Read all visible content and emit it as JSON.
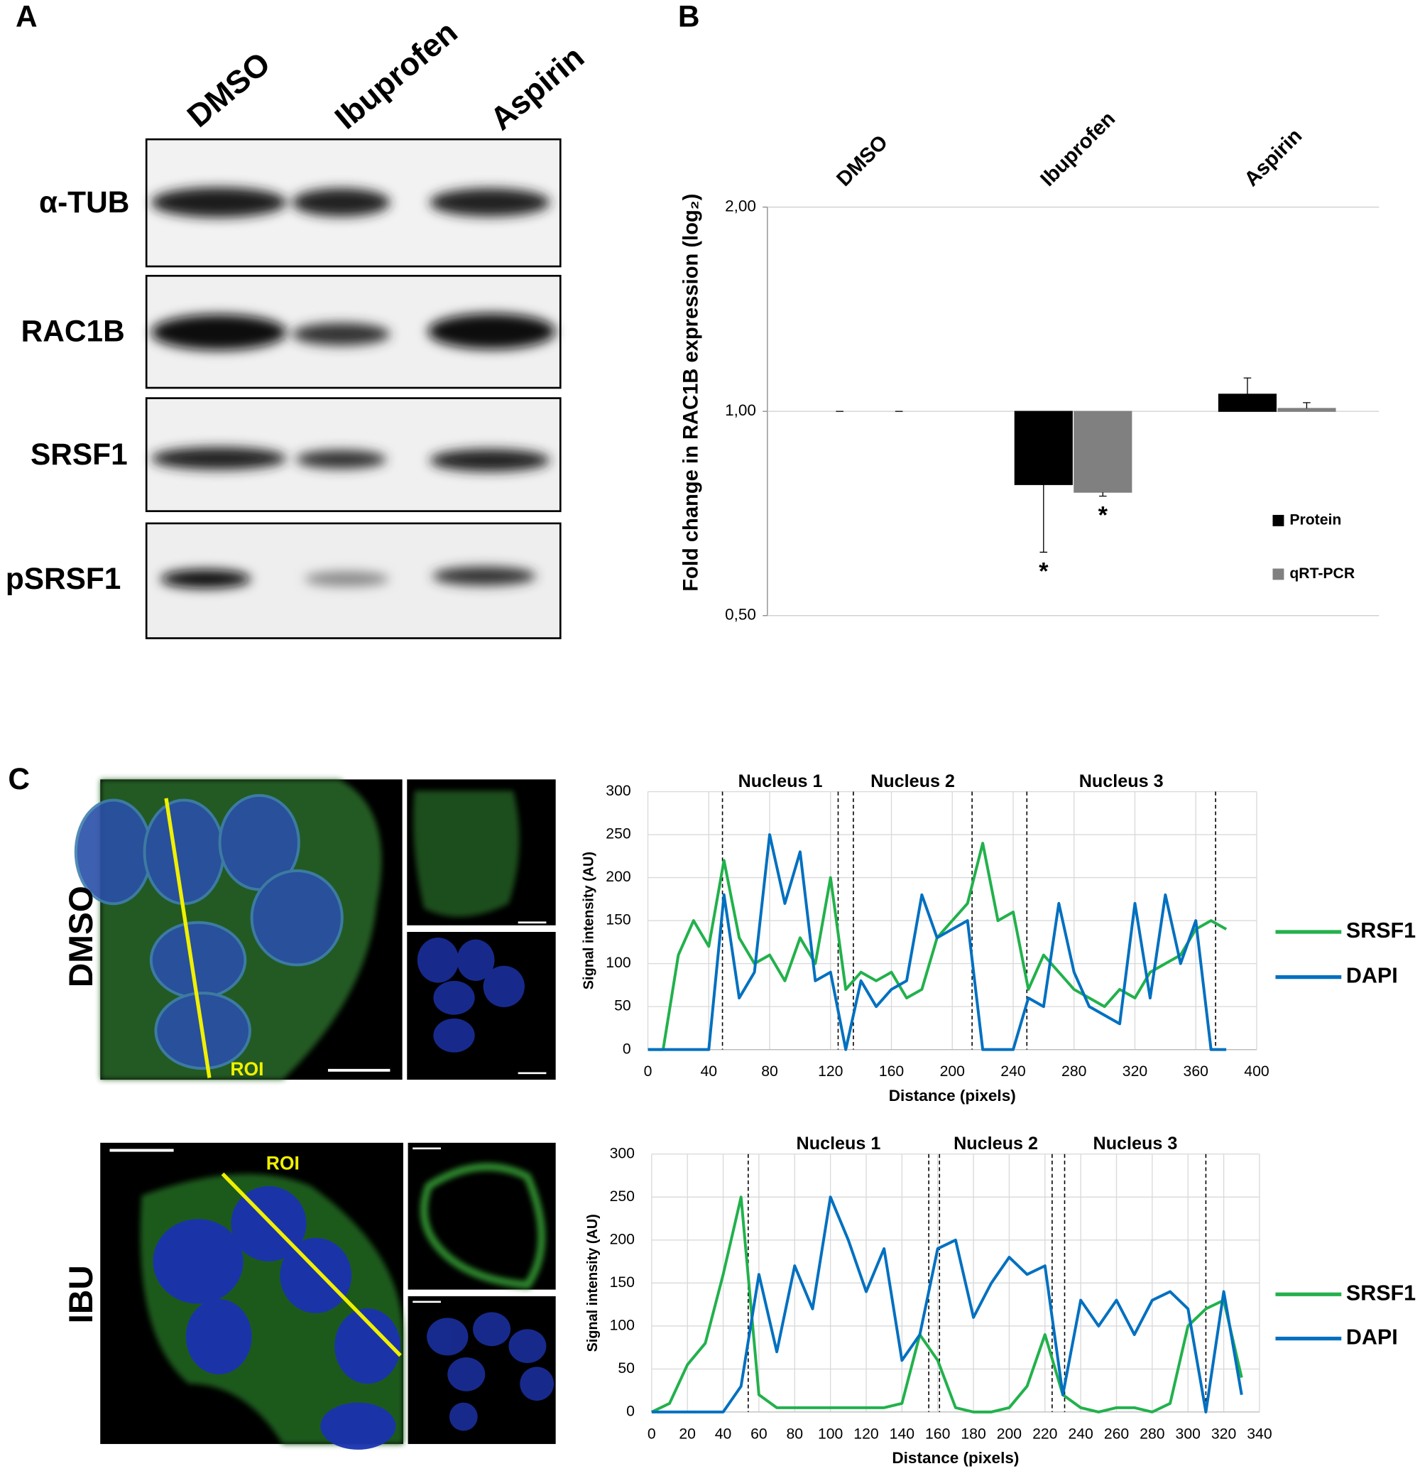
{
  "panel_a": {
    "letter": "A",
    "lanes": [
      "DMSO",
      "Ibuprofen",
      "Aspirin"
    ],
    "blots": [
      "α-TUB",
      "RAC1B",
      "SRSF1",
      "pSRSF1"
    ]
  },
  "panel_b": {
    "letter": "B"
  },
  "panel_c": {
    "letter": "C",
    "conditions": [
      "DMSO",
      "IBU"
    ],
    "roi": [
      "ROI",
      "ROI"
    ]
  },
  "chart_data": [
    {
      "type": "bar",
      "y_label": "Fold change in RAC1B expression (log₂)",
      "categories": [
        "DMSO",
        "Ibuprofen",
        "Aspirin"
      ],
      "series": [
        {
          "name": "Protein",
          "color": "#000000",
          "values": [
            1,
            0.78,
            1.06
          ],
          "errors": [
            0,
            0.16,
            0.06
          ]
        },
        {
          "name": "qRT-PCR",
          "color": "#808080",
          "values": [
            1,
            0.76,
            1.01
          ],
          "errors": [
            0,
            0.01,
            0.02
          ]
        }
      ],
      "log_scale": true,
      "ylim": [
        0.5,
        2
      ],
      "yticks": [
        {
          "value": 0.5,
          "label": "0,50"
        },
        {
          "value": 1,
          "label": "1,00"
        },
        {
          "value": 2,
          "label": "2,00"
        }
      ],
      "grid": true,
      "legend": "lower right",
      "annotations": [
        {
          "text": "*",
          "category": "Ibuprofen",
          "series": "Protein"
        },
        {
          "text": "*",
          "category": "Ibuprofen",
          "series": "qRT-PCR"
        }
      ]
    },
    {
      "type": "line",
      "x_label": "Distance (pixels)",
      "y_label": "Signal intensity (AU)",
      "x": [
        0,
        10,
        20,
        30,
        40,
        50,
        60,
        70,
        80,
        90,
        100,
        110,
        120,
        130,
        140,
        150,
        160,
        170,
        180,
        190,
        200,
        210,
        220,
        230,
        240,
        250,
        260,
        270,
        280,
        290,
        300,
        310,
        320,
        330,
        340,
        350,
        360,
        370,
        380
      ],
      "series": [
        {
          "name": "SRSF1",
          "color": "#22b14c",
          "values": [
            0,
            0,
            110,
            150,
            120,
            220,
            130,
            100,
            110,
            80,
            130,
            100,
            200,
            70,
            90,
            80,
            90,
            60,
            70,
            130,
            150,
            170,
            240,
            150,
            160,
            70,
            110,
            90,
            70,
            60,
            50,
            70,
            60,
            90,
            100,
            110,
            140,
            150,
            140
          ]
        },
        {
          "name": "DAPI",
          "color": "#0070c0",
          "values": [
            0,
            0,
            0,
            0,
            0,
            180,
            60,
            90,
            250,
            170,
            230,
            80,
            90,
            0,
            80,
            50,
            70,
            80,
            180,
            130,
            140,
            150,
            0,
            0,
            0,
            60,
            50,
            170,
            90,
            50,
            40,
            30,
            170,
            60,
            180,
            100,
            150,
            0,
            0
          ]
        }
      ],
      "xlim": [
        0,
        400
      ],
      "xticks": [
        0,
        40,
        80,
        120,
        160,
        200,
        240,
        280,
        320,
        360,
        400
      ],
      "ylim": [
        0,
        300
      ],
      "yticks": [
        0,
        50,
        100,
        150,
        200,
        250,
        300
      ],
      "grid": true,
      "legend": "right",
      "regions": [
        {
          "label": "Nucleus 1",
          "x_range": [
            49,
            125
          ]
        },
        {
          "label": "Nucleus 2",
          "x_range": [
            135,
            213
          ]
        },
        {
          "label": "Nucleus 3",
          "x_range": [
            249,
            373
          ]
        }
      ]
    },
    {
      "type": "line",
      "x_label": "Distance (pixels)",
      "y_label": "Signal intensity (AU)",
      "x": [
        0,
        10,
        20,
        30,
        40,
        50,
        60,
        70,
        80,
        90,
        100,
        110,
        120,
        130,
        140,
        150,
        160,
        170,
        180,
        190,
        200,
        210,
        220,
        230,
        240,
        250,
        260,
        270,
        280,
        290,
        300,
        310,
        320,
        330
      ],
      "series": [
        {
          "name": "SRSF1",
          "color": "#22b14c",
          "values": [
            0,
            10,
            55,
            80,
            160,
            250,
            20,
            5,
            5,
            5,
            5,
            5,
            5,
            5,
            10,
            90,
            60,
            5,
            0,
            0,
            5,
            30,
            90,
            20,
            5,
            0,
            5,
            5,
            0,
            10,
            100,
            120,
            130,
            40
          ]
        },
        {
          "name": "DAPI",
          "color": "#0070c0",
          "values": [
            0,
            0,
            0,
            0,
            0,
            30,
            160,
            70,
            170,
            120,
            250,
            200,
            140,
            190,
            60,
            90,
            190,
            200,
            110,
            150,
            180,
            160,
            170,
            20,
            130,
            100,
            130,
            90,
            130,
            140,
            120,
            0,
            140,
            20
          ]
        }
      ],
      "xlim": [
        0,
        340
      ],
      "xticks": [
        0,
        20,
        40,
        60,
        80,
        100,
        120,
        140,
        160,
        180,
        200,
        220,
        240,
        260,
        280,
        300,
        320,
        340
      ],
      "ylim": [
        0,
        300
      ],
      "yticks": [
        0,
        50,
        100,
        150,
        200,
        250,
        300
      ],
      "grid": true,
      "legend": "right",
      "regions": [
        {
          "label": "Nucleus 1",
          "x_range": [
            54,
            155
          ]
        },
        {
          "label": "Nucleus 2",
          "x_range": [
            161,
            224
          ]
        },
        {
          "label": "Nucleus 3",
          "x_range": [
            231,
            310
          ]
        }
      ]
    }
  ]
}
